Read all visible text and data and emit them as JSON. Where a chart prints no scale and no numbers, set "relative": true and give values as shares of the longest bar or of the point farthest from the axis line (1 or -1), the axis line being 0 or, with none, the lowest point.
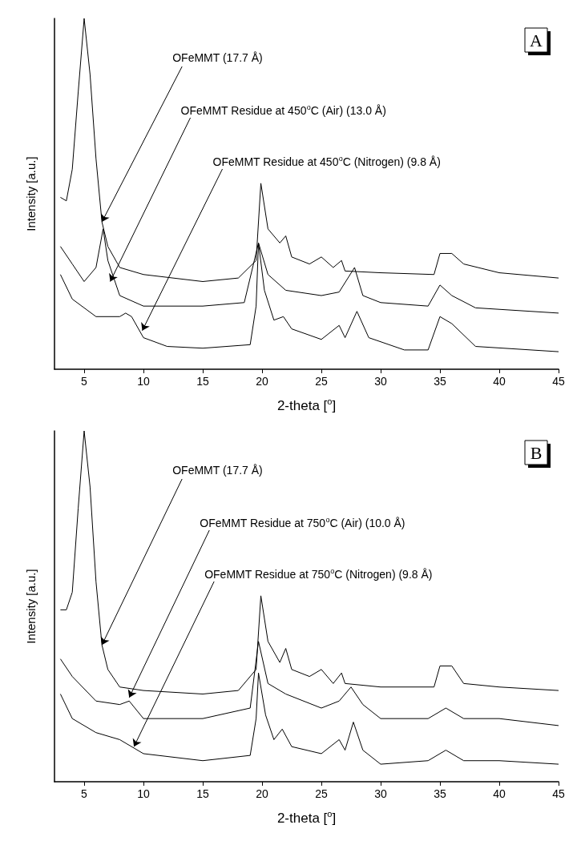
{
  "chart_data": [
    {
      "type": "line",
      "relative": true,
      "xlabel": "2-theta [$^{o}$]",
      "ylabel": "Intensity [a.u.]",
      "xlim": [
        2.5,
        45
      ],
      "xticks": [
        5,
        10,
        15,
        20,
        25,
        30,
        35,
        40,
        45
      ],
      "annotations": [
        "A",
        {
          "text": "OFeMMT (17.7 Å)",
          "x": 6.5,
          "y": 0.42
        },
        {
          "text": "OFeMMT Residue at 450$^{o}$C (Air) (13.0 Å)",
          "x": 7.2,
          "y": 0.25
        },
        {
          "text": "OFeMMT Residue at 450$^{o}$C (Nitrogen) (9.8 Å)",
          "x": 9.9,
          "y": 0.11
        }
      ],
      "series": [
        {
          "color": "#000000",
          "x": [
            3,
            3.5,
            4,
            4.5,
            5,
            5.5,
            6,
            6.5,
            7,
            8,
            10,
            15,
            18,
            19.5,
            19.9,
            20.5,
            21.5,
            22,
            22.5,
            24,
            25,
            26,
            26.7,
            27,
            30,
            34.5,
            35,
            36,
            37,
            40,
            45
          ],
          "values": [
            0.49,
            0.48,
            0.57,
            0.79,
            1.0,
            0.84,
            0.6,
            0.42,
            0.35,
            0.29,
            0.27,
            0.25,
            0.26,
            0.31,
            0.53,
            0.4,
            0.36,
            0.38,
            0.32,
            0.3,
            0.32,
            0.29,
            0.31,
            0.28,
            0.275,
            0.27,
            0.33,
            0.33,
            0.3,
            0.275,
            0.26
          ]
        },
        {
          "color": "#000000",
          "x": [
            3,
            4,
            5,
            6,
            6.6,
            7,
            8,
            10,
            15,
            18.5,
            19.7,
            20.5,
            22,
            25,
            26.5,
            27.8,
            28.5,
            30,
            34,
            35,
            36,
            38,
            45
          ],
          "values": [
            0.35,
            0.3,
            0.25,
            0.29,
            0.4,
            0.31,
            0.21,
            0.18,
            0.18,
            0.19,
            0.36,
            0.27,
            0.225,
            0.21,
            0.22,
            0.29,
            0.21,
            0.19,
            0.18,
            0.24,
            0.21,
            0.175,
            0.16
          ]
        },
        {
          "color": "#000000",
          "x": [
            3,
            4,
            6,
            8,
            8.5,
            9,
            10,
            12,
            15,
            19,
            19.5,
            19.7,
            20.2,
            21,
            21.8,
            22.5,
            25,
            26.5,
            27,
            28,
            29,
            32,
            34,
            35,
            36,
            38,
            45
          ],
          "values": [
            0.27,
            0.2,
            0.15,
            0.15,
            0.16,
            0.15,
            0.09,
            0.065,
            0.06,
            0.07,
            0.18,
            0.36,
            0.225,
            0.14,
            0.15,
            0.115,
            0.085,
            0.125,
            0.09,
            0.165,
            0.09,
            0.055,
            0.055,
            0.15,
            0.13,
            0.065,
            0.05
          ]
        }
      ]
    },
    {
      "type": "line",
      "relative": true,
      "xlabel": "2-theta [$^{o}$]",
      "ylabel": "Intensity [a.u.]",
      "xlim": [
        2.5,
        45
      ],
      "xticks": [
        5,
        10,
        15,
        20,
        25,
        30,
        35,
        40,
        45
      ],
      "annotations": [
        "B",
        {
          "text": "OFeMMT (17.7 Å)",
          "x": 6.5,
          "y": 0.39
        },
        {
          "text": "OFeMMT Residue at 750$^{o}$C (Air) (10.0 Å)",
          "x": 8.8,
          "y": 0.24
        },
        {
          "text": "OFeMMT Residue at 750$^{o}$C (Nitrogen) (9.8 Å)",
          "x": 9.2,
          "y": 0.1
        }
      ],
      "series": [
        {
          "color": "#000000",
          "x": [
            3,
            3.5,
            4,
            4.5,
            5,
            5.5,
            6,
            6.5,
            7,
            8,
            10,
            15,
            18,
            19.5,
            19.9,
            20.5,
            21.5,
            22,
            22.5,
            24,
            25,
            26,
            26.7,
            27,
            30,
            34.5,
            35,
            36,
            37,
            40,
            45
          ],
          "values": [
            0.49,
            0.49,
            0.54,
            0.78,
            1.0,
            0.84,
            0.57,
            0.39,
            0.32,
            0.27,
            0.26,
            0.25,
            0.26,
            0.32,
            0.53,
            0.4,
            0.34,
            0.38,
            0.32,
            0.3,
            0.32,
            0.28,
            0.31,
            0.28,
            0.27,
            0.27,
            0.33,
            0.33,
            0.28,
            0.27,
            0.26
          ]
        },
        {
          "color": "#000000",
          "x": [
            3,
            4,
            6,
            8,
            8.8,
            10,
            15,
            19,
            19.7,
            20.5,
            22,
            25,
            26.5,
            27.5,
            28.5,
            30,
            34,
            35.5,
            37,
            40,
            45
          ],
          "values": [
            0.35,
            0.3,
            0.23,
            0.22,
            0.23,
            0.18,
            0.18,
            0.21,
            0.4,
            0.28,
            0.25,
            0.21,
            0.23,
            0.27,
            0.22,
            0.18,
            0.18,
            0.21,
            0.18,
            0.18,
            0.16
          ]
        },
        {
          "color": "#000000",
          "x": [
            3,
            4,
            6,
            8,
            10,
            15,
            19,
            19.5,
            19.7,
            20.3,
            21,
            21.7,
            22.5,
            25,
            26.5,
            27,
            27.7,
            28.5,
            30,
            34,
            35.5,
            37,
            40,
            45
          ],
          "values": [
            0.25,
            0.18,
            0.14,
            0.12,
            0.08,
            0.06,
            0.075,
            0.18,
            0.31,
            0.19,
            0.12,
            0.15,
            0.1,
            0.08,
            0.12,
            0.09,
            0.17,
            0.09,
            0.05,
            0.06,
            0.09,
            0.06,
            0.06,
            0.05
          ]
        }
      ]
    }
  ]
}
